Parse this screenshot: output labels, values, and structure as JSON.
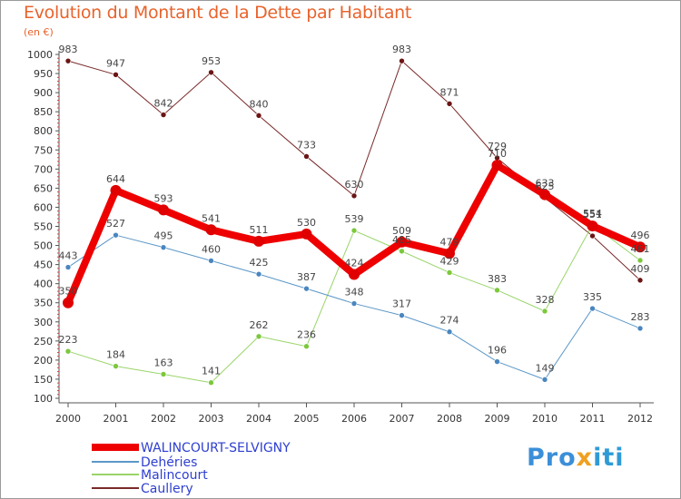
{
  "header": {
    "title": "Evolution du Montant de la Dette par Habitant",
    "unit": "(en €)"
  },
  "logo": {
    "text": "Proxiti",
    "part1": "Pro",
    "part2": "x",
    "part3": "iti"
  },
  "chart_data": {
    "type": "line",
    "title": "Evolution du Montant de la Dette par Habitant",
    "ylabel": "(en €)",
    "xlabel": "",
    "categories": [
      "2000",
      "2001",
      "2002",
      "2003",
      "2004",
      "2005",
      "2006",
      "2007",
      "2008",
      "2009",
      "2010",
      "2011",
      "2012"
    ],
    "ylim": [
      100,
      1000
    ],
    "yticks": [
      100,
      150,
      200,
      250,
      300,
      350,
      400,
      450,
      500,
      550,
      600,
      650,
      700,
      750,
      800,
      850,
      900,
      950,
      1000
    ],
    "grid": false,
    "legend_position": "bottom-left",
    "series": [
      {
        "name": "Caullery",
        "color": "#7a2a2a",
        "marker": "#6b1414",
        "width": 1,
        "radius": 3,
        "values": [
          983,
          947,
          842,
          953,
          840,
          733,
          630,
          983,
          871,
          729,
          625,
          525,
          409
        ],
        "labels": [
          "983",
          "947",
          "842",
          "953",
          "840",
          "733",
          "630",
          "983",
          "871",
          "729",
          "625",
          "",
          "409"
        ]
      },
      {
        "name": "Malincourt",
        "color": "#9ad56a",
        "marker": "#7cc83c",
        "width": 1,
        "radius": 3,
        "values": [
          223,
          184,
          163,
          141,
          262,
          236,
          539,
          485,
          429,
          383,
          328,
          554,
          461
        ],
        "labels": [
          "223",
          "184",
          "163",
          "141",
          "262",
          "236",
          "539",
          "485",
          "429",
          "383",
          "328",
          "554",
          "461"
        ]
      },
      {
        "name": "Dehéries",
        "color": "#5b97c7",
        "marker": "#4a86c0",
        "width": 1,
        "radius": 3,
        "values": [
          443,
          527,
          495,
          460,
          425,
          387,
          348,
          317,
          274,
          196,
          149,
          335,
          283
        ],
        "labels": [
          "443",
          "527",
          "495",
          "460",
          "425",
          "387",
          "348",
          "317",
          "274",
          "196",
          "149",
          "335",
          "283"
        ]
      },
      {
        "name": "WALINCOURT-SELVIGNY",
        "color": "#ee0000",
        "marker": "#e00000",
        "width": 8,
        "radius": 6,
        "values": [
          350,
          644,
          593,
          541,
          511,
          530,
          424,
          509,
          479,
          710,
          633,
          551,
          496
        ],
        "labels": [
          "350",
          "644",
          "593",
          "541",
          "511",
          "530",
          "424",
          "509",
          "479",
          "710",
          "633",
          "551",
          "496"
        ]
      }
    ],
    "legend": [
      {
        "name": "WALINCOURT-SELVIGNY",
        "color": "#ee0000",
        "thick": true
      },
      {
        "name": "Dehéries",
        "color": "#5b97c7",
        "thick": false
      },
      {
        "name": "Malincourt",
        "color": "#9ad56a",
        "thick": false
      },
      {
        "name": "Caullery",
        "color": "#7a2a2a",
        "thick": false
      }
    ]
  }
}
